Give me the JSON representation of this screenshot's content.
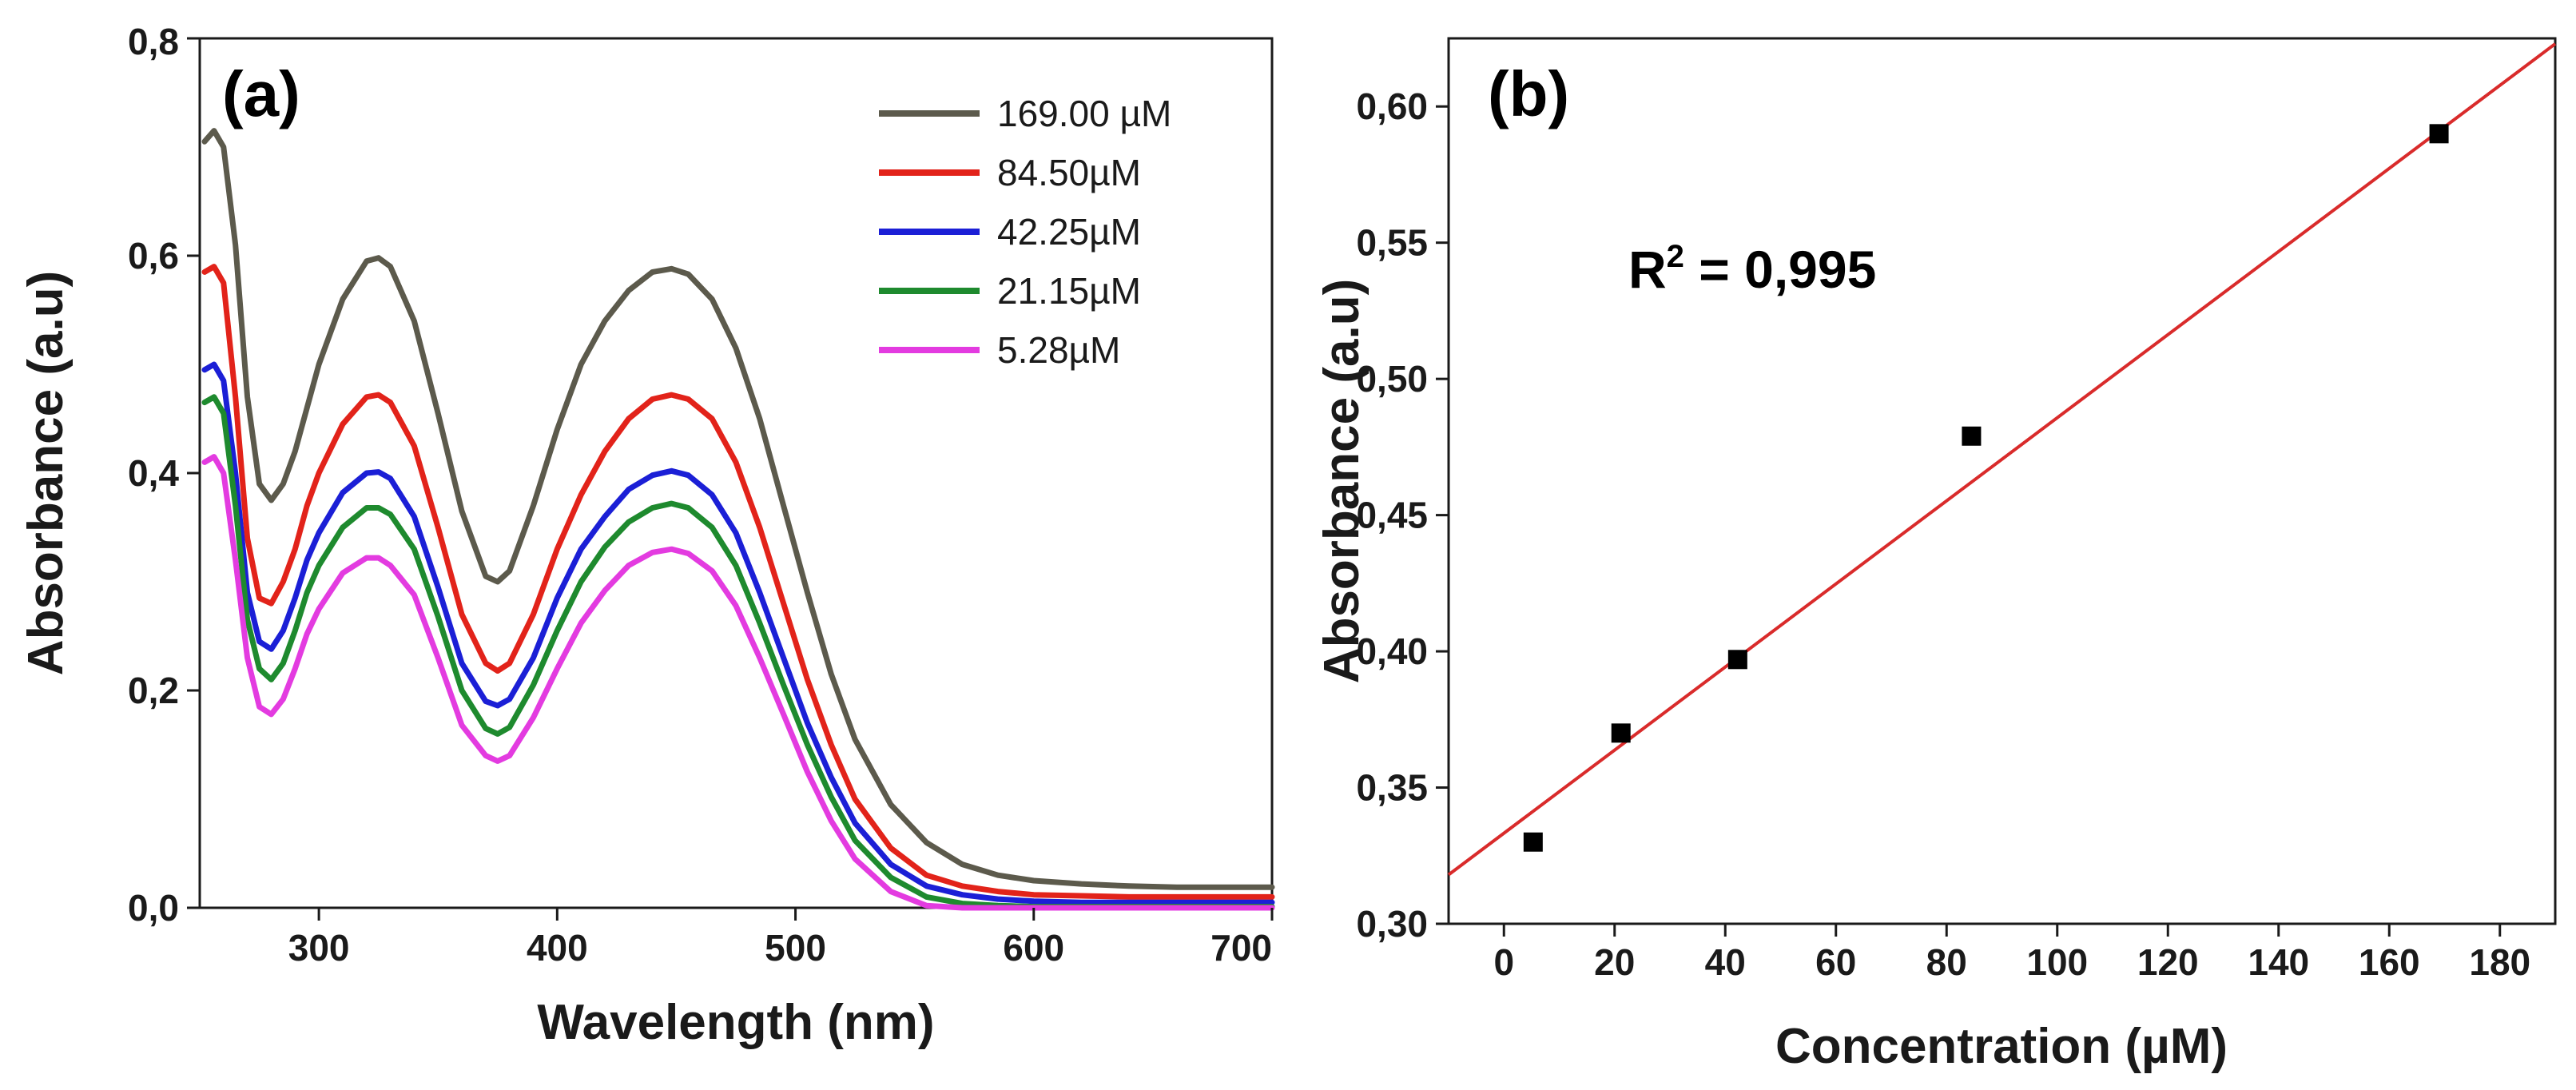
{
  "chart_data": [
    {
      "panel": "a",
      "type": "line",
      "panel_label": "(a)",
      "xlabel": "Wavelength (nm)",
      "ylabel": "Absorbance (a.u)",
      "xlim": [
        250,
        700
      ],
      "ylim": [
        0.0,
        0.8
      ],
      "x_ticks": [
        300,
        400,
        500,
        600,
        700
      ],
      "x_tick_labels": [
        "300",
        "400",
        "500",
        "600",
        "700"
      ],
      "y_ticks": [
        0.0,
        0.2,
        0.4,
        0.6,
        0.8
      ],
      "y_tick_labels": [
        "0,0",
        "0,2",
        "0,4",
        "0,6",
        "0,8"
      ],
      "legend_position": "top-right",
      "x": [
        252,
        256,
        260,
        265,
        270,
        275,
        280,
        285,
        290,
        295,
        300,
        310,
        320,
        325,
        330,
        340,
        350,
        360,
        370,
        375,
        380,
        390,
        400,
        410,
        420,
        430,
        440,
        448,
        455,
        465,
        475,
        485,
        495,
        505,
        515,
        525,
        540,
        555,
        570,
        585,
        600,
        620,
        640,
        660,
        680,
        700
      ],
      "series": [
        {
          "name": "169.00 µM",
          "color": "#5c5a4c",
          "values": [
            0.705,
            0.715,
            0.7,
            0.61,
            0.47,
            0.39,
            0.375,
            0.39,
            0.42,
            0.46,
            0.5,
            0.56,
            0.595,
            0.598,
            0.59,
            0.54,
            0.455,
            0.365,
            0.305,
            0.3,
            0.31,
            0.37,
            0.44,
            0.5,
            0.54,
            0.568,
            0.585,
            0.588,
            0.583,
            0.56,
            0.515,
            0.45,
            0.37,
            0.29,
            0.215,
            0.155,
            0.095,
            0.06,
            0.04,
            0.03,
            0.025,
            0.022,
            0.02,
            0.019,
            0.019,
            0.019
          ]
        },
        {
          "name": "84.50µM",
          "color": "#e2231a",
          "values": [
            0.585,
            0.59,
            0.575,
            0.47,
            0.34,
            0.285,
            0.28,
            0.3,
            0.33,
            0.37,
            0.4,
            0.445,
            0.47,
            0.472,
            0.465,
            0.425,
            0.35,
            0.27,
            0.225,
            0.218,
            0.225,
            0.27,
            0.33,
            0.38,
            0.42,
            0.45,
            0.468,
            0.472,
            0.468,
            0.45,
            0.41,
            0.35,
            0.28,
            0.21,
            0.15,
            0.1,
            0.055,
            0.03,
            0.02,
            0.015,
            0.012,
            0.011,
            0.01,
            0.01,
            0.01,
            0.01
          ]
        },
        {
          "name": "42.25µM",
          "color": "#1b1fd6",
          "values": [
            0.495,
            0.5,
            0.485,
            0.4,
            0.29,
            0.245,
            0.238,
            0.255,
            0.285,
            0.32,
            0.345,
            0.382,
            0.4,
            0.401,
            0.395,
            0.36,
            0.295,
            0.225,
            0.19,
            0.186,
            0.192,
            0.23,
            0.285,
            0.33,
            0.36,
            0.385,
            0.398,
            0.402,
            0.398,
            0.38,
            0.345,
            0.29,
            0.23,
            0.17,
            0.12,
            0.078,
            0.04,
            0.02,
            0.012,
            0.008,
            0.006,
            0.005,
            0.005,
            0.005,
            0.005,
            0.005
          ]
        },
        {
          "name": "21.15µM",
          "color": "#1e8a2e",
          "values": [
            0.465,
            0.47,
            0.455,
            0.37,
            0.265,
            0.22,
            0.21,
            0.225,
            0.255,
            0.29,
            0.315,
            0.35,
            0.368,
            0.368,
            0.362,
            0.33,
            0.268,
            0.2,
            0.165,
            0.16,
            0.166,
            0.205,
            0.255,
            0.3,
            0.332,
            0.355,
            0.368,
            0.372,
            0.368,
            0.35,
            0.315,
            0.262,
            0.205,
            0.15,
            0.102,
            0.062,
            0.028,
            0.01,
            0.004,
            0.002,
            0.001,
            0.001,
            0.001,
            0.001,
            0.001,
            0.001
          ]
        },
        {
          "name": "5.28µM",
          "color": "#e33be0",
          "values": [
            0.41,
            0.415,
            0.4,
            0.32,
            0.23,
            0.185,
            0.178,
            0.192,
            0.22,
            0.252,
            0.275,
            0.308,
            0.322,
            0.322,
            0.315,
            0.288,
            0.23,
            0.168,
            0.14,
            0.135,
            0.14,
            0.175,
            0.22,
            0.262,
            0.292,
            0.315,
            0.327,
            0.33,
            0.326,
            0.31,
            0.278,
            0.23,
            0.178,
            0.125,
            0.08,
            0.045,
            0.015,
            0.002,
            0.0,
            0.0,
            0.0,
            0.0,
            0.0,
            0.0,
            0.0,
            0.0
          ]
        }
      ]
    },
    {
      "panel": "b",
      "type": "scatter",
      "panel_label": "(b)",
      "xlabel": "Concentration (µM)",
      "ylabel": "Absorbance (a.u)",
      "xlim": [
        -10,
        190
      ],
      "ylim": [
        0.3,
        0.625
      ],
      "x_ticks": [
        0,
        20,
        40,
        60,
        80,
        100,
        120,
        140,
        160,
        180
      ],
      "x_tick_labels": [
        "0",
        "20",
        "40",
        "60",
        "80",
        "100",
        "120",
        "140",
        "160",
        "180"
      ],
      "y_ticks": [
        0.3,
        0.35,
        0.4,
        0.45,
        0.5,
        0.55,
        0.6
      ],
      "y_tick_labels": [
        "0,30",
        "0,35",
        "0,40",
        "0,45",
        "0,50",
        "0,55",
        "0,60"
      ],
      "points": {
        "x": [
          5.28,
          21.15,
          42.25,
          84.5,
          169.0
        ],
        "y": [
          0.33,
          0.37,
          0.397,
          0.479,
          0.59
        ]
      },
      "fit_line": {
        "color": "#d92b2b",
        "x": [
          -10,
          190
        ],
        "y": [
          0.318,
          0.623
        ]
      },
      "annotation": {
        "text": "R",
        "superscript": "2",
        "rest": " = 0,995"
      }
    }
  ]
}
